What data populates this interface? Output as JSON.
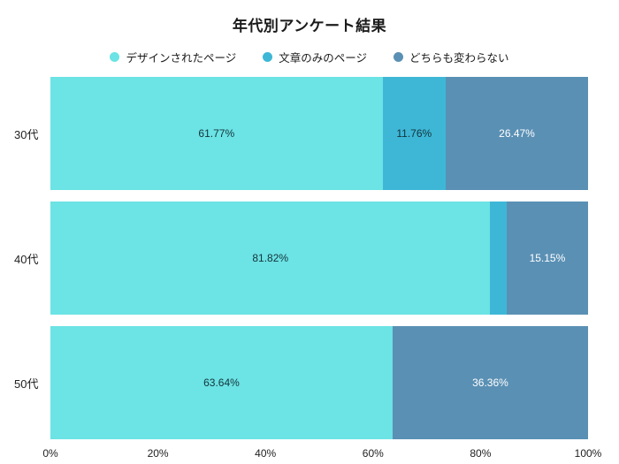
{
  "title": "年代別アンケート結果",
  "legend": [
    {
      "label": "デザインされたページ",
      "color": "#6ce3e4"
    },
    {
      "label": "文章のみのページ",
      "color": "#3eb7d7"
    },
    {
      "label": "どちらも変わらない",
      "color": "#5a90b4"
    }
  ],
  "chart_data": {
    "type": "bar",
    "orientation": "horizontal",
    "stacked": true,
    "title": "年代別アンケート結果",
    "categories": [
      "30代",
      "40代",
      "50代"
    ],
    "series": [
      {
        "name": "デザインされたページ",
        "color": "#6ce3e4",
        "label_color": "#13343b",
        "values": [
          61.77,
          81.82,
          63.64
        ]
      },
      {
        "name": "文章のみのページ",
        "color": "#3eb7d7",
        "label_color": "#13343b",
        "values": [
          11.76,
          3.03,
          0
        ]
      },
      {
        "name": "どちらも変わらない",
        "color": "#5a90b4",
        "label_color": "#ffffff",
        "values": [
          26.47,
          15.15,
          36.36
        ]
      }
    ],
    "segment_labels": [
      [
        "61.77%",
        "11.76%",
        "26.47%"
      ],
      [
        "81.82%",
        "",
        "15.15%"
      ],
      [
        "63.64%",
        "",
        "36.36%"
      ]
    ],
    "x_ticks": [
      "0%",
      "20%",
      "40%",
      "60%",
      "80%",
      "100%"
    ],
    "xlim": [
      0,
      100
    ],
    "legend_position": "top",
    "grid": false
  }
}
